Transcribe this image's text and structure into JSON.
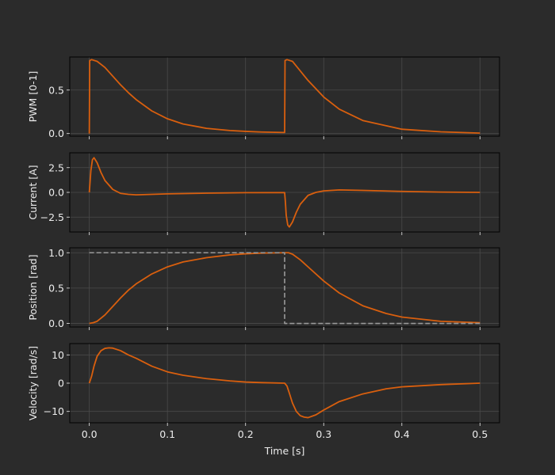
{
  "figure": {
    "background": "#2b2b2b",
    "axes_background": "#2b2b2b",
    "line_color": "#d95f0e",
    "ref_color": "#9a9a9a",
    "grid_color": "#4a4a4a",
    "text_color": "#ececec"
  },
  "chart_data": [
    {
      "type": "line",
      "ylabel": "PWM [0-1]",
      "xlim": [
        -0.025,
        0.525
      ],
      "ylim": [
        -0.03,
        0.88
      ],
      "yticks": [
        0.0,
        0.5
      ],
      "ytick_labels": [
        "0.0",
        "0.5"
      ],
      "grid": true,
      "series": [
        {
          "style": "solid",
          "x": [
            0.0,
            0.0005,
            0.003,
            0.01,
            0.02,
            0.03,
            0.04,
            0.05,
            0.06,
            0.08,
            0.1,
            0.12,
            0.15,
            0.18,
            0.2,
            0.22,
            0.2495,
            0.25,
            0.2505,
            0.253,
            0.26,
            0.27,
            0.28,
            0.3,
            0.32,
            0.35,
            0.4,
            0.45,
            0.5
          ],
          "y": [
            0.0,
            0.84,
            0.85,
            0.83,
            0.76,
            0.66,
            0.56,
            0.47,
            0.39,
            0.26,
            0.17,
            0.11,
            0.06,
            0.035,
            0.025,
            0.018,
            0.012,
            0.012,
            0.84,
            0.85,
            0.83,
            0.72,
            0.61,
            0.42,
            0.28,
            0.15,
            0.05,
            0.02,
            0.005
          ]
        }
      ]
    },
    {
      "type": "line",
      "ylabel": "Current [A]",
      "xlim": [
        -0.025,
        0.525
      ],
      "ylim": [
        -4.0,
        4.0
      ],
      "yticks": [
        -2.5,
        0.0,
        2.5
      ],
      "ytick_labels": [
        "−2.5",
        "0.0",
        "2.5"
      ],
      "grid": true,
      "series": [
        {
          "style": "solid",
          "x": [
            0.0,
            0.002,
            0.004,
            0.006,
            0.01,
            0.015,
            0.02,
            0.03,
            0.04,
            0.05,
            0.06,
            0.08,
            0.1,
            0.15,
            0.2,
            0.25,
            0.251,
            0.252,
            0.254,
            0.256,
            0.26,
            0.265,
            0.27,
            0.28,
            0.29,
            0.3,
            0.32,
            0.35,
            0.4,
            0.45,
            0.5
          ],
          "y": [
            0.0,
            2.2,
            3.3,
            3.5,
            3.0,
            2.0,
            1.2,
            0.3,
            -0.1,
            -0.2,
            -0.25,
            -0.2,
            -0.15,
            -0.08,
            -0.03,
            -0.02,
            -1.0,
            -2.3,
            -3.3,
            -3.5,
            -3.0,
            -2.0,
            -1.2,
            -0.3,
            0.0,
            0.15,
            0.25,
            0.2,
            0.1,
            0.03,
            0.0
          ]
        }
      ]
    },
    {
      "type": "line",
      "ylabel": "Position [rad]",
      "xlim": [
        -0.025,
        0.525
      ],
      "ylim": [
        -0.05,
        1.07
      ],
      "yticks": [
        0.0,
        0.5,
        1.0
      ],
      "ytick_labels": [
        "0.0",
        "0.5",
        "1.0"
      ],
      "grid": true,
      "series": [
        {
          "style": "solid",
          "x": [
            0.0,
            0.005,
            0.01,
            0.02,
            0.03,
            0.04,
            0.05,
            0.06,
            0.08,
            0.1,
            0.12,
            0.15,
            0.18,
            0.2,
            0.22,
            0.25,
            0.255,
            0.26,
            0.27,
            0.28,
            0.3,
            0.32,
            0.35,
            0.38,
            0.4,
            0.45,
            0.5
          ],
          "y": [
            0.0,
            0.01,
            0.03,
            0.12,
            0.24,
            0.36,
            0.47,
            0.56,
            0.7,
            0.8,
            0.87,
            0.93,
            0.97,
            0.985,
            0.995,
            1.0,
            1.0,
            0.98,
            0.9,
            0.8,
            0.6,
            0.43,
            0.25,
            0.14,
            0.09,
            0.03,
            0.01
          ]
        },
        {
          "style": "dashed",
          "x": [
            0.0,
            0.25,
            0.25,
            0.5
          ],
          "y": [
            1.0,
            1.0,
            0.0,
            0.0
          ]
        }
      ]
    },
    {
      "type": "line",
      "ylabel": "Velocity [rad/s]",
      "xlabel": "Time [s]",
      "xlim": [
        -0.025,
        0.525
      ],
      "ylim": [
        -14.0,
        14.0
      ],
      "xticks": [
        0.0,
        0.1,
        0.2,
        0.3,
        0.4,
        0.5
      ],
      "xtick_labels": [
        "0.0",
        "0.1",
        "0.2",
        "0.3",
        "0.4",
        "0.5"
      ],
      "yticks": [
        -10,
        0,
        10
      ],
      "ytick_labels": [
        "−10",
        "0",
        "10"
      ],
      "grid": true,
      "series": [
        {
          "style": "solid",
          "x": [
            0.0,
            0.003,
            0.006,
            0.01,
            0.015,
            0.02,
            0.025,
            0.03,
            0.04,
            0.05,
            0.06,
            0.08,
            0.1,
            0.12,
            0.15,
            0.18,
            0.2,
            0.22,
            0.25,
            0.253,
            0.256,
            0.26,
            0.265,
            0.27,
            0.275,
            0.28,
            0.29,
            0.3,
            0.32,
            0.35,
            0.38,
            0.4,
            0.45,
            0.5
          ],
          "y": [
            0.0,
            2.5,
            6.0,
            9.5,
            11.5,
            12.3,
            12.5,
            12.4,
            11.5,
            10.0,
            8.8,
            6.0,
            4.0,
            2.8,
            1.6,
            0.8,
            0.4,
            0.2,
            0.0,
            -1.0,
            -3.5,
            -7.0,
            -10.0,
            -11.5,
            -12.0,
            -12.2,
            -11.2,
            -9.5,
            -6.5,
            -3.8,
            -2.0,
            -1.3,
            -0.5,
            0.0
          ]
        }
      ]
    }
  ]
}
